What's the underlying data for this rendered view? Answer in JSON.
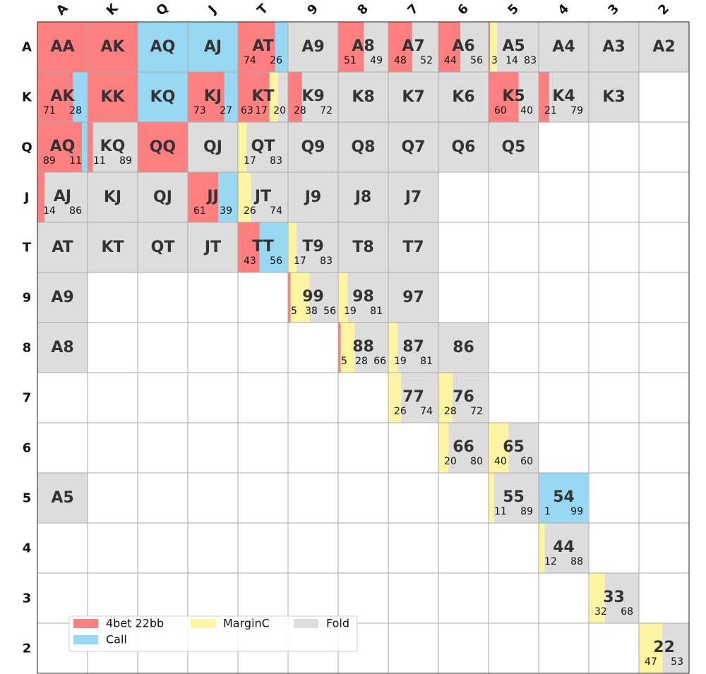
{
  "chart_data": {
    "type": "heatmap",
    "title": "",
    "xlabel": "",
    "ylabel": "",
    "col_labels": [
      "A",
      "K",
      "Q",
      "J",
      "T",
      "9",
      "8",
      "7",
      "6",
      "5",
      "4",
      "3",
      "2"
    ],
    "row_labels": [
      "A",
      "K",
      "Q",
      "J",
      "T",
      "9",
      "8",
      "7",
      "6",
      "5",
      "4",
      "3",
      "2"
    ],
    "grid": true,
    "legend_position": "lower-left",
    "actions": [
      {
        "key": "r",
        "name": "4bet 22bb",
        "color": "#fd7f7f"
      },
      {
        "key": "c",
        "name": "Call",
        "color": "#98d8f2"
      },
      {
        "key": "m",
        "name": "MarginC",
        "color": "#fef5a2"
      },
      {
        "key": "f",
        "name": "Fold",
        "color": "#dddddd"
      }
    ],
    "cells": [
      {
        "row": 0,
        "col": 0,
        "hand": "AA",
        "mix": {
          "r": 100
        }
      },
      {
        "row": 0,
        "col": 1,
        "hand": "AK",
        "mix": {
          "r": 100
        }
      },
      {
        "row": 0,
        "col": 2,
        "hand": "AQ",
        "mix": {
          "c": 100
        }
      },
      {
        "row": 0,
        "col": 3,
        "hand": "AJ",
        "mix": {
          "c": 100
        }
      },
      {
        "row": 0,
        "col": 4,
        "hand": "AT",
        "mix": {
          "r": 74,
          "c": 26
        },
        "labels": [
          "74",
          "26"
        ]
      },
      {
        "row": 0,
        "col": 5,
        "hand": "A9",
        "mix": {
          "f": 100
        }
      },
      {
        "row": 0,
        "col": 6,
        "hand": "A8",
        "mix": {
          "r": 51,
          "f": 49
        },
        "labels": [
          "51",
          "49"
        ]
      },
      {
        "row": 0,
        "col": 7,
        "hand": "A7",
        "mix": {
          "r": 48,
          "f": 52
        },
        "labels": [
          "48",
          "52"
        ]
      },
      {
        "row": 0,
        "col": 8,
        "hand": "A6",
        "mix": {
          "r": 44,
          "f": 56
        },
        "labels": [
          "44",
          "56"
        ]
      },
      {
        "row": 0,
        "col": 9,
        "hand": "A5",
        "mix": {
          "r": 3,
          "m": 14,
          "f": 83
        },
        "labels": [
          "3",
          "14",
          "83"
        ]
      },
      {
        "row": 0,
        "col": 10,
        "hand": "A4",
        "mix": {
          "f": 100
        }
      },
      {
        "row": 0,
        "col": 11,
        "hand": "A3",
        "mix": {
          "f": 100
        }
      },
      {
        "row": 0,
        "col": 12,
        "hand": "A2",
        "mix": {
          "f": 100
        }
      },
      {
        "row": 1,
        "col": 0,
        "hand": "AK",
        "mix": {
          "r": 71,
          "c": 28
        },
        "labels": [
          "71",
          "28"
        ]
      },
      {
        "row": 1,
        "col": 1,
        "hand": "KK",
        "mix": {
          "r": 100
        }
      },
      {
        "row": 1,
        "col": 2,
        "hand": "KQ",
        "mix": {
          "c": 100
        }
      },
      {
        "row": 1,
        "col": 3,
        "hand": "KJ",
        "mix": {
          "r": 73,
          "c": 27
        },
        "labels": [
          "73",
          "27"
        ]
      },
      {
        "row": 1,
        "col": 4,
        "hand": "KT",
        "mix": {
          "r": 63,
          "m": 17,
          "f": 20
        },
        "labels": [
          "63",
          "17",
          "20"
        ]
      },
      {
        "row": 1,
        "col": 5,
        "hand": "K9",
        "mix": {
          "r": 28,
          "f": 72
        },
        "labels": [
          "28",
          "72"
        ]
      },
      {
        "row": 1,
        "col": 6,
        "hand": "K8",
        "mix": {
          "f": 100
        }
      },
      {
        "row": 1,
        "col": 7,
        "hand": "K7",
        "mix": {
          "f": 100
        }
      },
      {
        "row": 1,
        "col": 8,
        "hand": "K6",
        "mix": {
          "f": 100
        }
      },
      {
        "row": 1,
        "col": 9,
        "hand": "K5",
        "mix": {
          "r": 60,
          "f": 40
        },
        "labels": [
          "60",
          "40"
        ]
      },
      {
        "row": 1,
        "col": 10,
        "hand": "K4",
        "mix": {
          "r": 21,
          "f": 79
        },
        "labels": [
          "21",
          "79"
        ]
      },
      {
        "row": 1,
        "col": 11,
        "hand": "K3",
        "mix": {
          "f": 100
        }
      },
      {
        "row": 2,
        "col": 0,
        "hand": "AQ",
        "mix": {
          "r": 89,
          "c": 11
        },
        "labels": [
          "89",
          "11"
        ]
      },
      {
        "row": 2,
        "col": 1,
        "hand": "KQ",
        "mix": {
          "r": 11,
          "f": 89
        },
        "labels": [
          "11",
          "89"
        ]
      },
      {
        "row": 2,
        "col": 2,
        "hand": "QQ",
        "mix": {
          "r": 100
        }
      },
      {
        "row": 2,
        "col": 3,
        "hand": "QJ",
        "mix": {
          "f": 100
        }
      },
      {
        "row": 2,
        "col": 4,
        "hand": "QT",
        "mix": {
          "m": 17,
          "f": 83
        },
        "labels": [
          "17",
          "83"
        ]
      },
      {
        "row": 2,
        "col": 5,
        "hand": "Q9",
        "mix": {
          "f": 100
        }
      },
      {
        "row": 2,
        "col": 6,
        "hand": "Q8",
        "mix": {
          "f": 100
        }
      },
      {
        "row": 2,
        "col": 7,
        "hand": "Q7",
        "mix": {
          "f": 100
        }
      },
      {
        "row": 2,
        "col": 8,
        "hand": "Q6",
        "mix": {
          "f": 100
        }
      },
      {
        "row": 2,
        "col": 9,
        "hand": "Q5",
        "mix": {
          "f": 100
        }
      },
      {
        "row": 3,
        "col": 0,
        "hand": "AJ",
        "mix": {
          "r": 14,
          "f": 86
        },
        "labels": [
          "14",
          "86"
        ]
      },
      {
        "row": 3,
        "col": 1,
        "hand": "KJ",
        "mix": {
          "f": 100
        }
      },
      {
        "row": 3,
        "col": 2,
        "hand": "QJ",
        "mix": {
          "f": 100
        }
      },
      {
        "row": 3,
        "col": 3,
        "hand": "JJ",
        "mix": {
          "r": 61,
          "c": 39
        },
        "labels": [
          "61",
          "39"
        ]
      },
      {
        "row": 3,
        "col": 4,
        "hand": "JT",
        "mix": {
          "m": 26,
          "f": 74
        },
        "labels": [
          "26",
          "74"
        ]
      },
      {
        "row": 3,
        "col": 5,
        "hand": "J9",
        "mix": {
          "f": 100
        }
      },
      {
        "row": 3,
        "col": 6,
        "hand": "J8",
        "mix": {
          "f": 100
        }
      },
      {
        "row": 3,
        "col": 7,
        "hand": "J7",
        "mix": {
          "f": 100
        }
      },
      {
        "row": 4,
        "col": 0,
        "hand": "AT",
        "mix": {
          "f": 100
        }
      },
      {
        "row": 4,
        "col": 1,
        "hand": "KT",
        "mix": {
          "f": 100
        }
      },
      {
        "row": 4,
        "col": 2,
        "hand": "QT",
        "mix": {
          "f": 100
        }
      },
      {
        "row": 4,
        "col": 3,
        "hand": "JT",
        "mix": {
          "f": 100
        }
      },
      {
        "row": 4,
        "col": 4,
        "hand": "TT",
        "mix": {
          "r": 43,
          "c": 56
        },
        "labels": [
          "43",
          "56"
        ]
      },
      {
        "row": 4,
        "col": 5,
        "hand": "T9",
        "mix": {
          "m": 17,
          "f": 83
        },
        "labels": [
          "17",
          "83"
        ]
      },
      {
        "row": 4,
        "col": 6,
        "hand": "T8",
        "mix": {
          "f": 100
        }
      },
      {
        "row": 4,
        "col": 7,
        "hand": "T7",
        "mix": {
          "f": 100
        }
      },
      {
        "row": 5,
        "col": 0,
        "hand": "A9",
        "mix": {
          "f": 100
        }
      },
      {
        "row": 5,
        "col": 5,
        "hand": "99",
        "mix": {
          "r": 5,
          "m": 38,
          "f": 56
        },
        "labels": [
          "5",
          "38",
          "56"
        ]
      },
      {
        "row": 5,
        "col": 6,
        "hand": "98",
        "mix": {
          "m": 19,
          "f": 81
        },
        "labels": [
          "19",
          "81"
        ]
      },
      {
        "row": 5,
        "col": 7,
        "hand": "97",
        "mix": {
          "f": 100
        }
      },
      {
        "row": 6,
        "col": 0,
        "hand": "A8",
        "mix": {
          "f": 100
        }
      },
      {
        "row": 6,
        "col": 6,
        "hand": "88",
        "mix": {
          "r": 5,
          "m": 28,
          "f": 66
        },
        "labels": [
          "5",
          "28",
          "66"
        ]
      },
      {
        "row": 6,
        "col": 7,
        "hand": "87",
        "mix": {
          "m": 19,
          "f": 81
        },
        "labels": [
          "19",
          "81"
        ]
      },
      {
        "row": 6,
        "col": 8,
        "hand": "86",
        "mix": {
          "f": 100
        }
      },
      {
        "row": 7,
        "col": 7,
        "hand": "77",
        "mix": {
          "m": 26,
          "f": 74
        },
        "labels": [
          "26",
          "74"
        ]
      },
      {
        "row": 7,
        "col": 8,
        "hand": "76",
        "mix": {
          "m": 28,
          "f": 72
        },
        "labels": [
          "28",
          "72"
        ]
      },
      {
        "row": 8,
        "col": 8,
        "hand": "66",
        "mix": {
          "m": 20,
          "f": 80
        },
        "labels": [
          "20",
          "80"
        ]
      },
      {
        "row": 8,
        "col": 9,
        "hand": "65",
        "mix": {
          "m": 40,
          "f": 60
        },
        "labels": [
          "40",
          "60"
        ]
      },
      {
        "row": 9,
        "col": 0,
        "hand": "A5",
        "mix": {
          "f": 100
        }
      },
      {
        "row": 9,
        "col": 9,
        "hand": "55",
        "mix": {
          "m": 11,
          "f": 89
        },
        "labels": [
          "11",
          "89"
        ]
      },
      {
        "row": 9,
        "col": 10,
        "hand": "54",
        "mix": {
          "m": 1,
          "c": 99
        },
        "labels": [
          "1",
          "99"
        ]
      },
      {
        "row": 10,
        "col": 10,
        "hand": "44",
        "mix": {
          "m": 12,
          "f": 88
        },
        "labels": [
          "12",
          "88"
        ]
      },
      {
        "row": 11,
        "col": 11,
        "hand": "33",
        "mix": {
          "m": 32,
          "f": 68
        },
        "labels": [
          "32",
          "68"
        ]
      },
      {
        "row": 12,
        "col": 12,
        "hand": "22",
        "mix": {
          "m": 47,
          "f": 53
        },
        "labels": [
          "47",
          "53"
        ]
      }
    ]
  }
}
